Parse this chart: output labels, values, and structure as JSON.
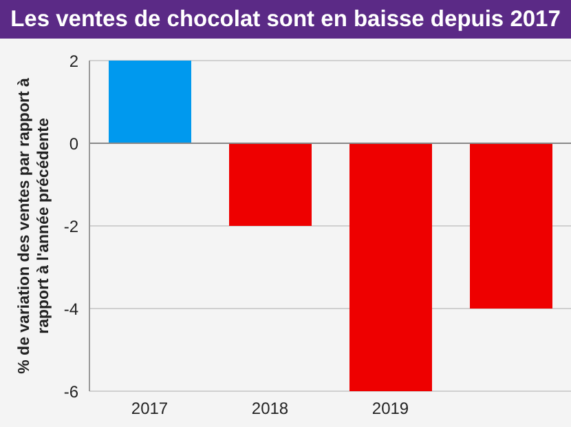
{
  "chart_data": {
    "type": "bar",
    "title": "Les ventes de chocolat sont en baisse depuis 2017",
    "ylabel": "% de variation des ventes par rapport à rapport à l'année précédente",
    "categories": [
      "2017",
      "2018",
      "2019",
      null
    ],
    "values": [
      2,
      -2,
      -6,
      -4
    ],
    "colors": [
      "#0099ee",
      "#ee0000",
      "#ee0000",
      "#ee0000"
    ],
    "ylim": [
      -6,
      2
    ],
    "yticks": [
      -6,
      -4,
      -2,
      0,
      2
    ],
    "grid": "y"
  }
}
